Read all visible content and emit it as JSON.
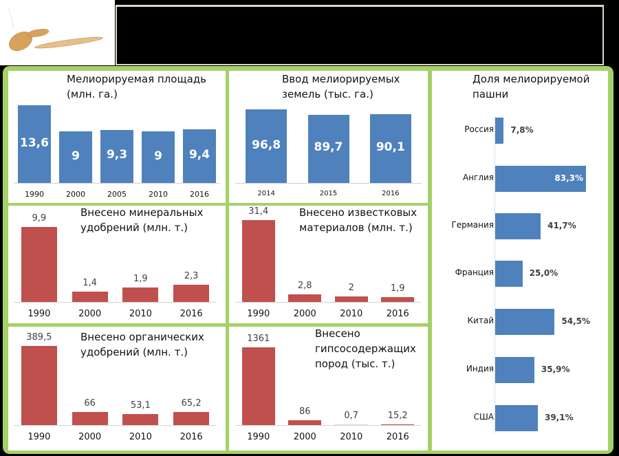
{
  "colors": {
    "blue": "#4f81bd",
    "red": "#c0504d",
    "frame": "#a6d068"
  },
  "charts": [
    {
      "id": "c1",
      "type": "bar",
      "title": "Мелиорируемая площадь\n(млн. га.)",
      "categories": [
        "1990",
        "2000",
        "2005",
        "2010",
        "2016"
      ],
      "values": [
        13.6,
        9,
        9.3,
        9,
        9.4
      ],
      "labels": [
        "13,6",
        "9",
        "9,3",
        "9",
        "9,4"
      ],
      "ylim": [
        0,
        13.6
      ],
      "color": "blue",
      "label_pos": "inside"
    },
    {
      "id": "c2",
      "type": "bar",
      "title": "Ввод мелиорируемых\nземель (тыс. га.)",
      "categories": [
        "2014",
        "2015",
        "2016"
      ],
      "values": [
        96.8,
        89.7,
        90.1
      ],
      "labels": [
        "96,8",
        "89,7",
        "90,1"
      ],
      "ylim": [
        0,
        96.8
      ],
      "color": "blue",
      "label_pos": "inside"
    },
    {
      "id": "c3",
      "type": "bar",
      "title": "Внесено минеральных\nудобрений (млн. т.)",
      "categories": [
        "1990",
        "2000",
        "2010",
        "2016"
      ],
      "values": [
        9.9,
        1.4,
        1.9,
        2.3
      ],
      "labels": [
        "9,9",
        "1,4",
        "1,9",
        "2,3"
      ],
      "ylim": [
        0,
        9.9
      ],
      "color": "red",
      "label_pos": "above"
    },
    {
      "id": "c4",
      "type": "bar",
      "title": "Внесено известковых\nматериалов (млн. т.)",
      "categories": [
        "1990",
        "2000",
        "2010",
        "2016"
      ],
      "values": [
        31.4,
        2.8,
        2,
        1.9
      ],
      "labels": [
        "31,4",
        "2,8",
        "2",
        "1,9"
      ],
      "ylim": [
        0,
        31.4
      ],
      "color": "red",
      "label_pos": "above"
    },
    {
      "id": "c5",
      "type": "bar",
      "title": "Внесено органических\nудобрений (млн. т.)",
      "categories": [
        "1990",
        "2000",
        "2010",
        "2016"
      ],
      "values": [
        389.5,
        66,
        53.1,
        65.2
      ],
      "labels": [
        "389,5",
        "66",
        "53,1",
        "65,2"
      ],
      "ylim": [
        0,
        389.5
      ],
      "color": "red",
      "label_pos": "above"
    },
    {
      "id": "c6",
      "type": "bar",
      "title": "Внесено\nгипсосодержащих\nпород (тыс. т.)",
      "categories": [
        "1990",
        "2000",
        "2010",
        "2016"
      ],
      "values": [
        1361,
        86,
        0.7,
        15.2
      ],
      "labels": [
        "1361",
        "86",
        "0,7",
        "15,2"
      ],
      "ylim": [
        0,
        1361
      ],
      "color": "red",
      "label_pos": "above"
    }
  ],
  "chart_data": {
    "type": "bar",
    "orientation": "horizontal",
    "title": "Доля мелиорируемой\nпашни",
    "categories": [
      "Россия",
      "Англия",
      "Германия",
      "Франция",
      "Китай",
      "Индия",
      "США"
    ],
    "values": [
      7.8,
      83.3,
      41.7,
      25.0,
      54.5,
      35.9,
      39.1
    ],
    "labels": [
      "7,8%",
      "83,3%",
      "41,7%",
      "25,0%",
      "54,5%",
      "35,9%",
      "39,1%"
    ],
    "xlim": [
      0,
      100
    ]
  }
}
